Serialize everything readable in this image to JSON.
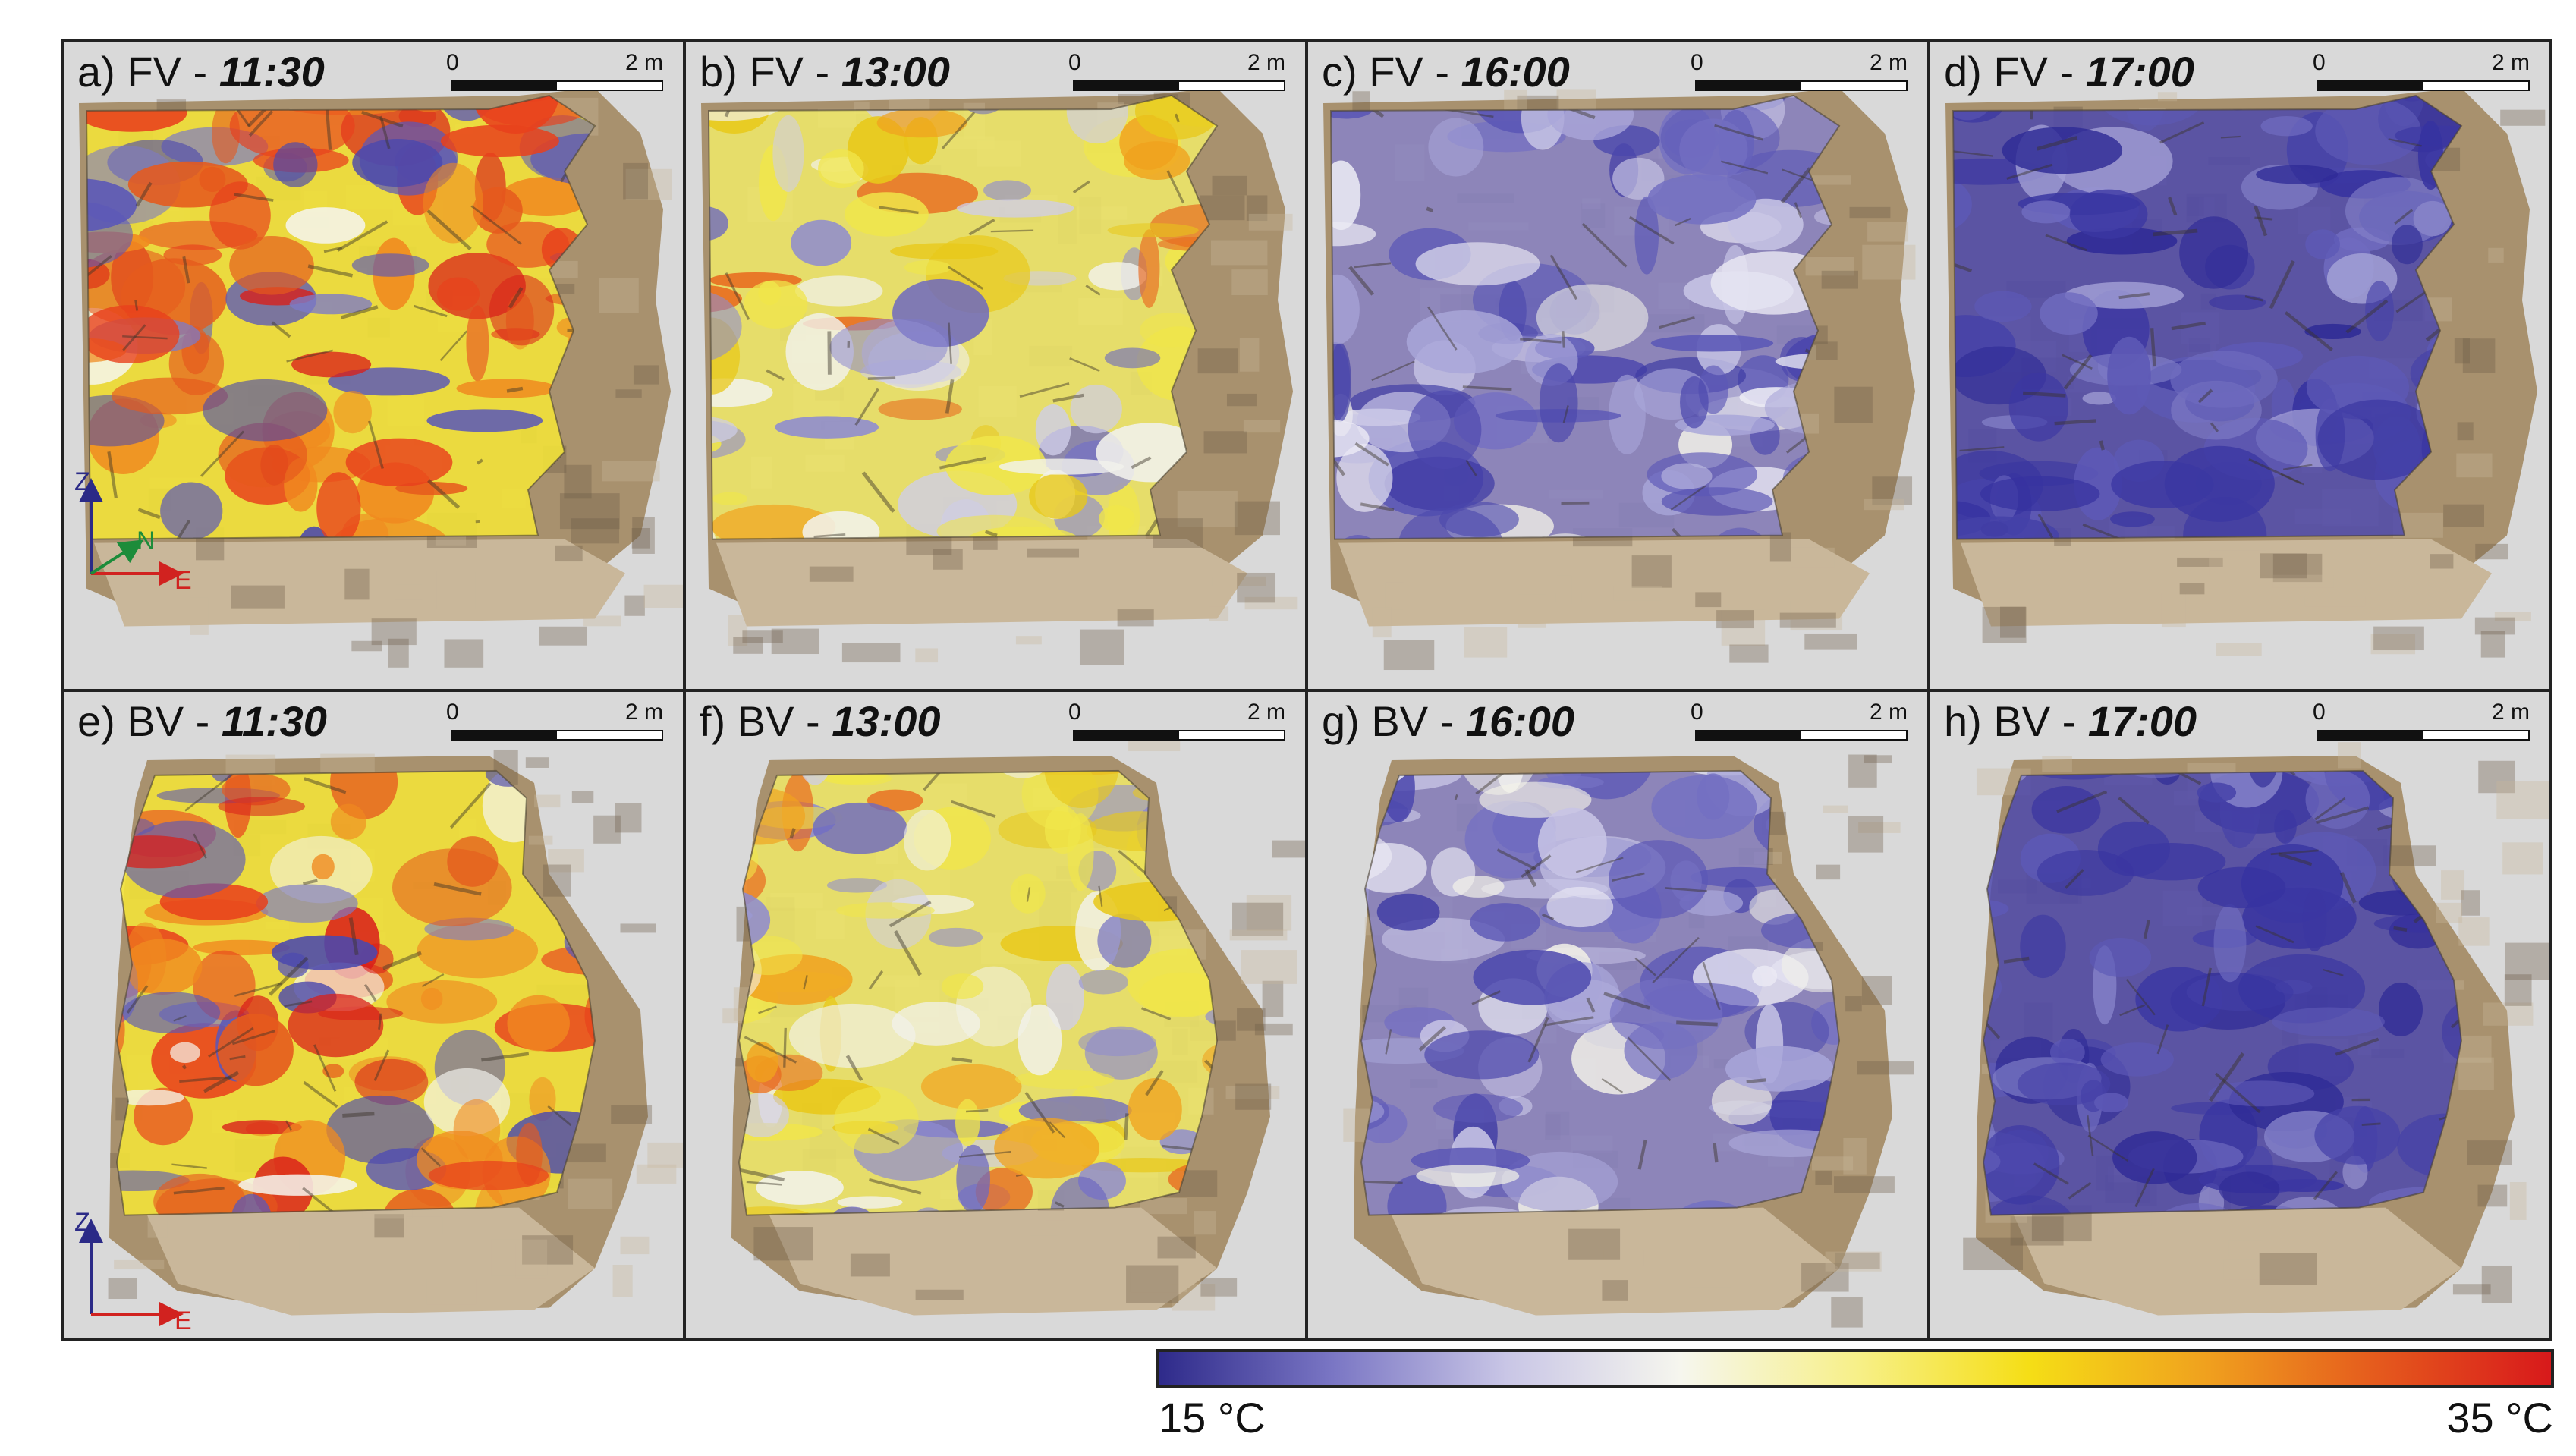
{
  "panels": [
    {
      "letter": "a)",
      "view": "FV",
      "sep": " - ",
      "time": "11:30",
      "theme": "hot",
      "shape": "fv"
    },
    {
      "letter": "b)",
      "view": "FV",
      "sep": " - ",
      "time": "13:00",
      "theme": "warm",
      "shape": "fv"
    },
    {
      "letter": "c)",
      "view": "FV",
      "sep": " - ",
      "time": "16:00",
      "theme": "cool",
      "shape": "fv"
    },
    {
      "letter": "d)",
      "view": "FV",
      "sep": " - ",
      "time": "17:00",
      "theme": "cold",
      "shape": "fv"
    },
    {
      "letter": "e)",
      "view": "BV",
      "sep": " - ",
      "time": "11:30",
      "theme": "hot",
      "shape": "bv"
    },
    {
      "letter": "f)",
      "view": "BV",
      "sep": " - ",
      "time": "13:00",
      "theme": "warm",
      "shape": "bv"
    },
    {
      "letter": "g)",
      "view": "BV",
      "sep": " - ",
      "time": "16:00",
      "theme": "cool",
      "shape": "bv"
    },
    {
      "letter": "h)",
      "view": "BV",
      "sep": " - ",
      "time": "17:00",
      "theme": "cold",
      "shape": "bv"
    }
  ],
  "scalebar": {
    "zero": "0",
    "length": "2 m"
  },
  "axes_front": {
    "z": "Z",
    "n": "N",
    "e": "E"
  },
  "axes_back": {
    "z": "Z",
    "e": "E"
  },
  "colorbar": {
    "min_label": "15 °C",
    "max_label": "35 °C",
    "stops": [
      "#2e2a8a",
      "#7a76c4",
      "#c9c6e6",
      "#f6f6ee",
      "#f7f08a",
      "#f5de16",
      "#f0a21e",
      "#e55a1d",
      "#d8191b"
    ]
  },
  "colors": {
    "rock_light": "#c9b79a",
    "rock_mid": "#a8916e",
    "rock_dark": "#6d5d49",
    "axis_blue": "#2b2a87",
    "axis_green": "#1c8c3a",
    "axis_red": "#d1221f"
  }
}
